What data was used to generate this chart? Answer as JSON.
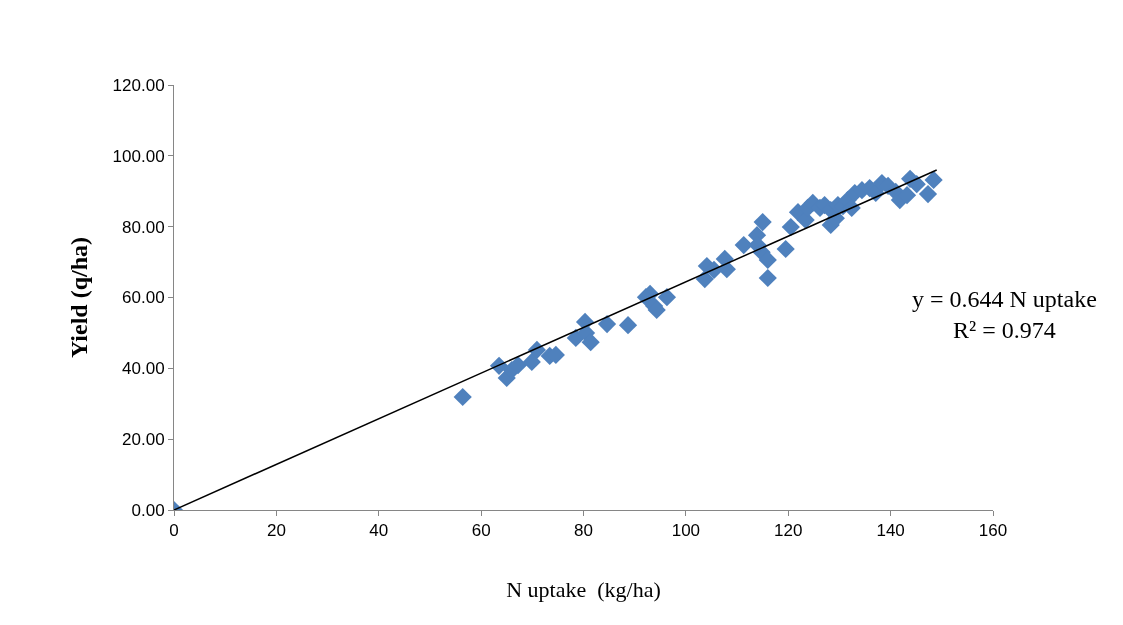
{
  "chart_data": {
    "type": "scatter",
    "xlabel": "N uptake  (kg/ha)",
    "ylabel": "Yield (q/ha)",
    "annotations": [
      "y = 0.644 N uptake\nR² = 0.974"
    ],
    "xlim": [
      0,
      160
    ],
    "xticks": [
      0,
      20,
      40,
      60,
      80,
      100,
      120,
      140,
      160
    ],
    "ylim": [
      0,
      120
    ],
    "yticks": [
      {
        "value": 0,
        "label": "0.00"
      },
      {
        "value": 20,
        "label": "20.00"
      },
      {
        "value": 40,
        "label": "40.00"
      },
      {
        "value": 60,
        "label": "60.00"
      },
      {
        "value": 80,
        "label": "80.00"
      },
      {
        "value": 100,
        "label": "100.00"
      },
      {
        "value": 120,
        "label": "120.00"
      }
    ],
    "marker": "diamond",
    "series": [
      {
        "color": "#4f81bd",
        "x": [
          0,
          56.4,
          63.5,
          65,
          66,
          67.2,
          69.9,
          70.9,
          73.4,
          74.6,
          78.5,
          80.3,
          80.5,
          81.4,
          84.6,
          88.7,
          92.2,
          93,
          93.8,
          94.3,
          96.3,
          103.7,
          104.1,
          105.5,
          107.6,
          108,
          111.3,
          113.9,
          115,
          114.8,
          116,
          116,
          114,
          119.5,
          120.5,
          121.9,
          123.4,
          123.8,
          124.8,
          126.2,
          127.1,
          128.3,
          128.3,
          129.3,
          129.7,
          130.7,
          131.6,
          132.4,
          133,
          134.4,
          135.9,
          137.1,
          138.3,
          139.5,
          141,
          141.8,
          143.2,
          143.8,
          145.1,
          147.3,
          148.4
        ],
        "values": [
          0,
          31.9,
          40.7,
          37.3,
          39.5,
          40.9,
          41.8,
          45.2,
          43.5,
          43.8,
          48.6,
          53.1,
          50,
          47.4,
          52.5,
          52.2,
          60.1,
          61,
          57.6,
          56.5,
          60.1,
          65.2,
          68.9,
          67.8,
          70.9,
          68,
          74.8,
          77.6,
          81.3,
          72.8,
          70.6,
          65.5,
          74.8,
          73.7,
          79.9,
          84.1,
          81.9,
          85.3,
          86.7,
          85.3,
          86.1,
          84.7,
          80.5,
          82.4,
          86.1,
          85.8,
          87.5,
          85.3,
          89.5,
          90.3,
          90.9,
          89.5,
          92.3,
          91.5,
          89.8,
          87.5,
          88.9,
          93.5,
          92,
          89.2,
          93.2
        ]
      },
      {
        "type": "line",
        "color": "#000000",
        "marker": "none",
        "x": [
          0,
          149
        ],
        "values": [
          0,
          96
        ]
      }
    ]
  }
}
